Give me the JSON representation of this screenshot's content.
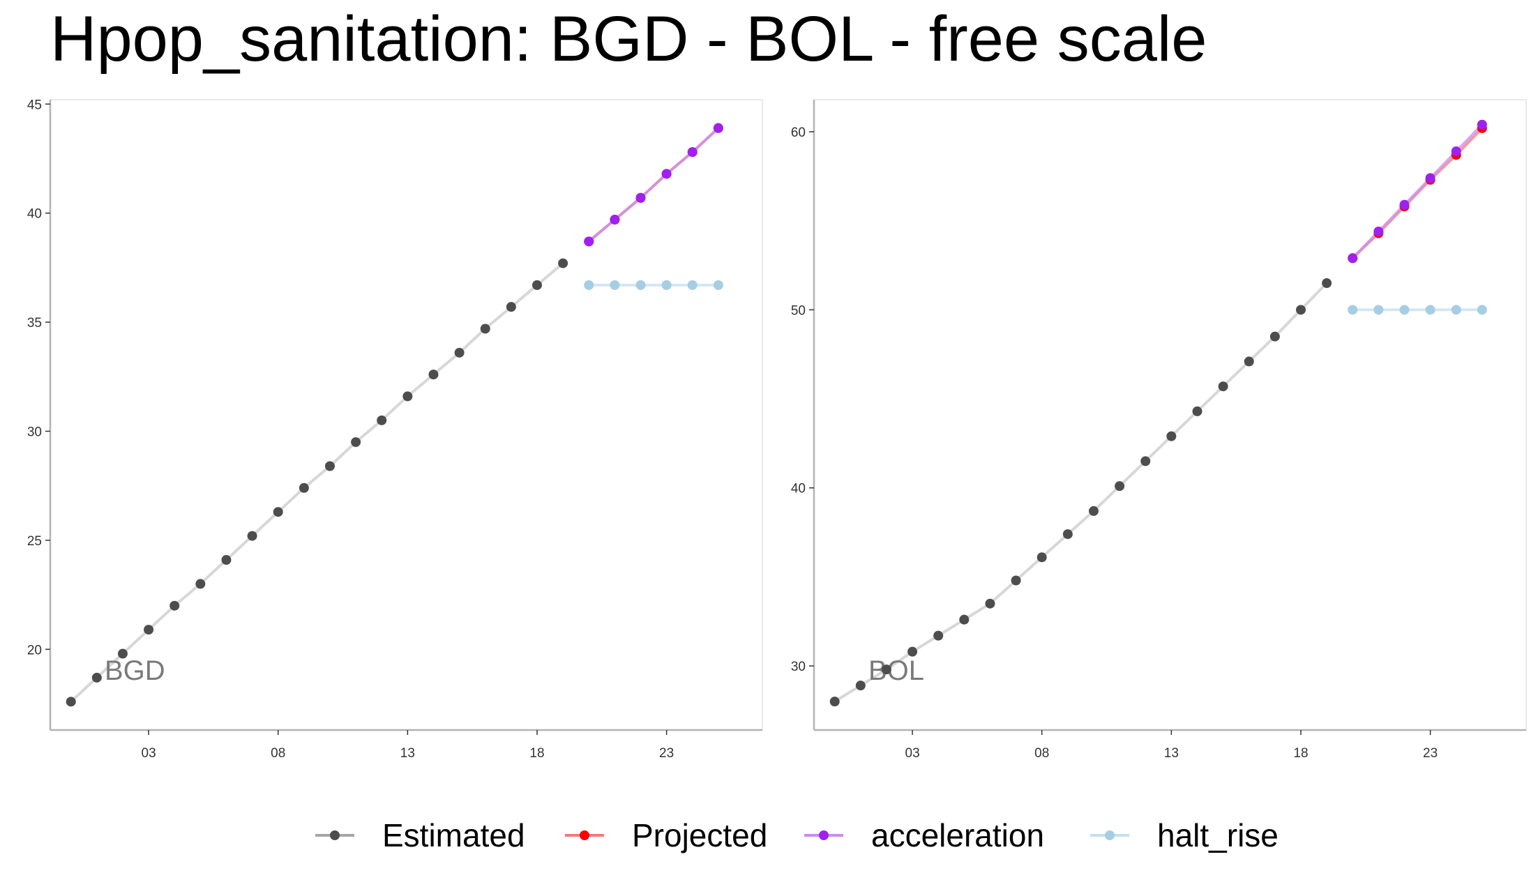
{
  "title": "Hpop_sanitation: BGD - BOL - free scale",
  "chart_data": {
    "type": "line",
    "title": "Hpop_sanitation: BGD - BOL - free scale",
    "xlabel": "",
    "ylabel": "",
    "grid": false,
    "legend_position": "bottom",
    "legend": [
      {
        "name": "Estimated",
        "color": "#4d4d4d",
        "line_color": "#a6a6a6"
      },
      {
        "name": "Projected",
        "color": "#ff0000",
        "line_color": "#f47a7a"
      },
      {
        "name": "acceleration",
        "color": "#a020f0",
        "line_color": "#c98cf0"
      },
      {
        "name": "halt_rise",
        "color": "#a6cee3",
        "line_color": "#c4dfed"
      }
    ],
    "x_ticks": [
      3,
      8,
      13,
      18,
      23
    ],
    "x_tick_labels": [
      "03",
      "08",
      "13",
      "18",
      "23"
    ],
    "xlim": [
      -0.8,
      26.7
    ],
    "panels": [
      {
        "label": "BGD",
        "ylim": [
          16.3,
          45.2
        ],
        "y_ticks": [
          20,
          25,
          30,
          35,
          40,
          45
        ],
        "series": [
          {
            "name": "Estimated",
            "x": [
              0,
              1,
              2,
              3,
              4,
              5,
              6,
              7,
              8,
              9,
              10,
              11,
              12,
              13,
              14,
              15,
              16,
              17,
              18,
              19
            ],
            "y": [
              17.6,
              18.7,
              19.8,
              20.9,
              22.0,
              23.0,
              24.1,
              25.2,
              26.3,
              27.4,
              28.4,
              29.5,
              30.5,
              31.6,
              32.6,
              33.6,
              34.7,
              35.7,
              36.7,
              37.7
            ]
          },
          {
            "name": "Projected",
            "x": [
              20,
              21,
              22,
              23,
              24,
              25
            ],
            "y": [
              38.7,
              39.7,
              40.7,
              41.8,
              42.8,
              43.9
            ]
          },
          {
            "name": "acceleration",
            "x": [
              20,
              21,
              22,
              23,
              24,
              25
            ],
            "y": [
              38.7,
              39.7,
              40.7,
              41.8,
              42.8,
              43.9
            ]
          },
          {
            "name": "halt_rise",
            "x": [
              20,
              21,
              22,
              23,
              24,
              25
            ],
            "y": [
              36.7,
              36.7,
              36.7,
              36.7,
              36.7,
              36.7
            ]
          }
        ]
      },
      {
        "label": "BOL",
        "ylim": [
          26.4,
          61.8
        ],
        "y_ticks": [
          30,
          40,
          50,
          60
        ],
        "series": [
          {
            "name": "Estimated",
            "x": [
              0,
              1,
              2,
              3,
              4,
              5,
              6,
              7,
              8,
              9,
              10,
              11,
              12,
              13,
              14,
              15,
              16,
              17,
              18,
              19
            ],
            "y": [
              28.0,
              28.9,
              29.8,
              30.8,
              31.7,
              32.6,
              33.5,
              34.8,
              36.1,
              37.4,
              38.7,
              40.1,
              41.5,
              42.9,
              44.3,
              45.7,
              47.1,
              48.5,
              50.0,
              51.5
            ]
          },
          {
            "name": "Projected",
            "x": [
              20,
              21,
              22,
              23,
              24,
              25
            ],
            "y": [
              52.9,
              54.3,
              55.8,
              57.3,
              58.7,
              60.2
            ]
          },
          {
            "name": "acceleration",
            "x": [
              20,
              21,
              22,
              23,
              24,
              25
            ],
            "y": [
              52.9,
              54.4,
              55.9,
              57.4,
              58.9,
              60.4
            ]
          },
          {
            "name": "halt_rise",
            "x": [
              20,
              21,
              22,
              23,
              24,
              25
            ],
            "y": [
              50.0,
              50.0,
              50.0,
              50.0,
              50.0,
              50.0
            ]
          }
        ]
      }
    ]
  }
}
